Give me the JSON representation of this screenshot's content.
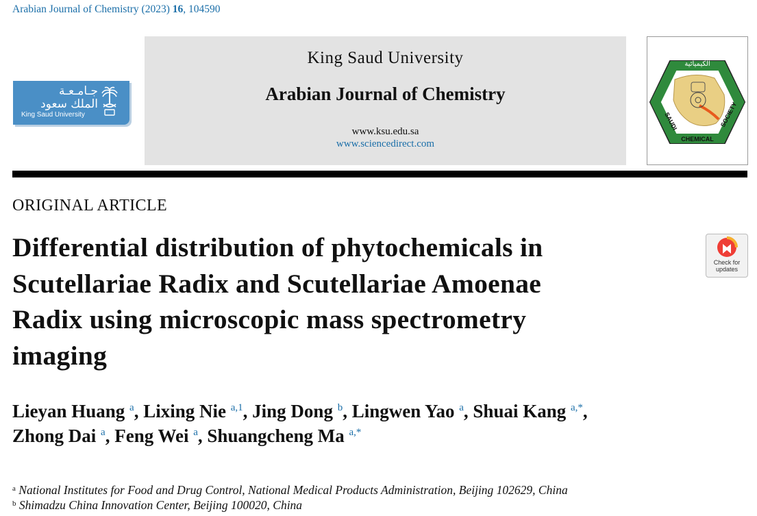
{
  "citation": {
    "journal": "Arabian Journal of Chemistry (2023)",
    "volume": "16",
    "article_no": ", 104590"
  },
  "ksu_logo": {
    "arabic_line1": "جـامـعـة",
    "arabic_line2": "الملك سعود",
    "english": "King Saud University"
  },
  "banner": {
    "university": "King Saud University",
    "journal": "Arabian Journal of Chemistry",
    "url1": "www.ksu.edu.sa",
    "url2": "www.sciencedirect.com"
  },
  "society_logo": {
    "top_arabic": "الكيميائية",
    "left": "SAUDI",
    "right": "SOCIETY",
    "bottom": "CHEMICAL"
  },
  "article_type": "ORIGINAL ARTICLE",
  "title_lines": [
    "Differential distribution of phytochemicals in",
    "Scutellariae Radix and Scutellariae Amoenae",
    "Radix using microscopic mass spectrometry",
    "imaging"
  ],
  "check_updates": {
    "line1": "Check for",
    "line2": "updates"
  },
  "authors": [
    {
      "name": "Lieyan Huang",
      "sup": "a",
      "sep": ", "
    },
    {
      "name": "Lixing Nie",
      "sup": "a,1",
      "sep": ", "
    },
    {
      "name": "Jing Dong",
      "sup": "b",
      "sep": ", "
    },
    {
      "name": "Lingwen Yao",
      "sup": "a",
      "sep": ", "
    },
    {
      "name": "Shuai Kang",
      "sup": "a,*",
      "sep": ","
    },
    {
      "name": "Zhong Dai",
      "sup": "a",
      "sep": ", "
    },
    {
      "name": "Feng Wei",
      "sup": "a",
      "sep": ", "
    },
    {
      "name": "Shuangcheng Ma",
      "sup": "a,*",
      "sep": ""
    }
  ],
  "affiliations": [
    {
      "mark": "a",
      "text": "National Institutes for Food and Drug Control, National Medical Products Administration, Beijing 102629, China"
    },
    {
      "mark": "b",
      "text": "Shimadzu China Innovation Center, Beijing 100020, China"
    }
  ],
  "colors": {
    "link": "#1a6ea8",
    "ksu_blue": "#4a8fc6",
    "banner_grey": "#e3e3e3",
    "society_green": "#2f8a3c"
  }
}
